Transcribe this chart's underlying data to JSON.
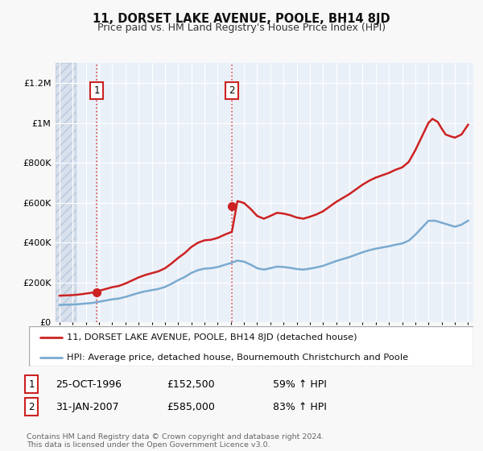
{
  "title": "11, DORSET LAKE AVENUE, POOLE, BH14 8JD",
  "subtitle": "Price paid vs. HM Land Registry's House Price Index (HPI)",
  "ylim": [
    0,
    1300000
  ],
  "xlim_start": 1993.7,
  "xlim_end": 2025.4,
  "hatch_end": 1995.2,
  "yticks": [
    0,
    200000,
    400000,
    600000,
    800000,
    1000000,
    1200000
  ],
  "ytick_labels": [
    "£0",
    "£200K",
    "£400K",
    "£600K",
    "£800K",
    "£1M",
    "£1.2M"
  ],
  "fig_bg_color": "#f8f8f8",
  "plot_bg_color": "#eaf0f8",
  "hatch_bg_color": "#d8e0ec",
  "grid_color": "#ffffff",
  "red_line_color": "#cc2222",
  "blue_line_color": "#7aaad0",
  "transaction1_date": 1996.82,
  "transaction1_price": 152500,
  "transaction2_date": 2007.08,
  "transaction2_price": 585000,
  "legend_line1": "11, DORSET LAKE AVENUE, POOLE, BH14 8JD (detached house)",
  "legend_line2": "HPI: Average price, detached house, Bournemouth Christchurch and Poole",
  "note1_date": "25-OCT-1996",
  "note1_price": "£152,500",
  "note1_hpi": "59% ↑ HPI",
  "note2_date": "31-JAN-2007",
  "note2_price": "£585,000",
  "note2_hpi": "83% ↑ HPI",
  "footer": "Contains HM Land Registry data © Crown copyright and database right 2024.\nThis data is licensed under the Open Government Licence v3.0.",
  "hpi_years": [
    1994,
    1994.5,
    1995,
    1995.5,
    1996,
    1996.5,
    1997,
    1997.5,
    1998,
    1998.5,
    1999,
    1999.5,
    2000,
    2000.5,
    2001,
    2001.5,
    2002,
    2002.5,
    2003,
    2003.5,
    2004,
    2004.5,
    2005,
    2005.5,
    2006,
    2006.5,
    2007,
    2007.5,
    2008,
    2008.5,
    2009,
    2009.5,
    2010,
    2010.5,
    2011,
    2011.5,
    2012,
    2012.5,
    2013,
    2013.5,
    2014,
    2014.5,
    2015,
    2015.5,
    2016,
    2016.5,
    2017,
    2017.5,
    2018,
    2018.5,
    2019,
    2019.5,
    2020,
    2020.5,
    2021,
    2021.5,
    2022,
    2022.5,
    2023,
    2023.5,
    2024,
    2024.5,
    2025
  ],
  "hpi_vals": [
    88000,
    89000,
    90000,
    92000,
    95000,
    98000,
    104000,
    110000,
    116000,
    120000,
    128000,
    138000,
    148000,
    156000,
    162000,
    168000,
    178000,
    194000,
    212000,
    228000,
    248000,
    262000,
    270000,
    272000,
    278000,
    288000,
    298000,
    310000,
    305000,
    290000,
    272000,
    265000,
    272000,
    280000,
    278000,
    274000,
    268000,
    265000,
    270000,
    276000,
    284000,
    296000,
    308000,
    318000,
    328000,
    340000,
    352000,
    362000,
    370000,
    376000,
    382000,
    390000,
    396000,
    410000,
    440000,
    475000,
    510000,
    510000,
    500000,
    490000,
    480000,
    490000,
    510000
  ],
  "red_years": [
    1994,
    1994.5,
    1995,
    1995.5,
    1996,
    1996.5,
    1996.82,
    1997,
    1997.5,
    1998,
    1998.5,
    1999,
    1999.5,
    2000,
    2000.5,
    2001,
    2001.5,
    2002,
    2002.5,
    2003,
    2003.5,
    2004,
    2004.5,
    2005,
    2005.5,
    2006,
    2006.5,
    2007.08,
    2007.5,
    2008,
    2008.5,
    2009,
    2009.5,
    2010,
    2010.5,
    2011,
    2011.5,
    2012,
    2012.5,
    2013,
    2013.5,
    2014,
    2014.5,
    2015,
    2015.5,
    2016,
    2016.5,
    2017,
    2017.5,
    2018,
    2018.5,
    2019,
    2019.5,
    2020,
    2020.5,
    2021,
    2021.5,
    2022,
    2022.3,
    2022.7,
    2023,
    2023.3,
    2023.7,
    2024,
    2024.5,
    2025
  ],
  "red_hpi_base_vals": [
    88000,
    89000,
    90000,
    92000,
    95000,
    98000,
    100000,
    104000,
    110000,
    116000,
    120000,
    128000,
    138000,
    148000,
    156000,
    162000,
    168000,
    178000,
    194000,
    212000,
    228000,
    248000,
    262000,
    270000,
    272000,
    278000,
    288000,
    298000,
    310000,
    305000,
    290000,
    272000,
    265000,
    272000,
    280000,
    278000,
    274000,
    268000,
    265000,
    270000,
    276000,
    284000,
    296000,
    308000,
    318000,
    328000,
    340000,
    352000,
    362000,
    370000,
    376000,
    382000,
    390000,
    396000,
    410000,
    440000,
    475000,
    510000,
    520000,
    512000,
    495000,
    480000,
    475000,
    472000,
    480000,
    505000
  ],
  "hpi_at_t1": 100000,
  "hpi_at_t2": 298000
}
